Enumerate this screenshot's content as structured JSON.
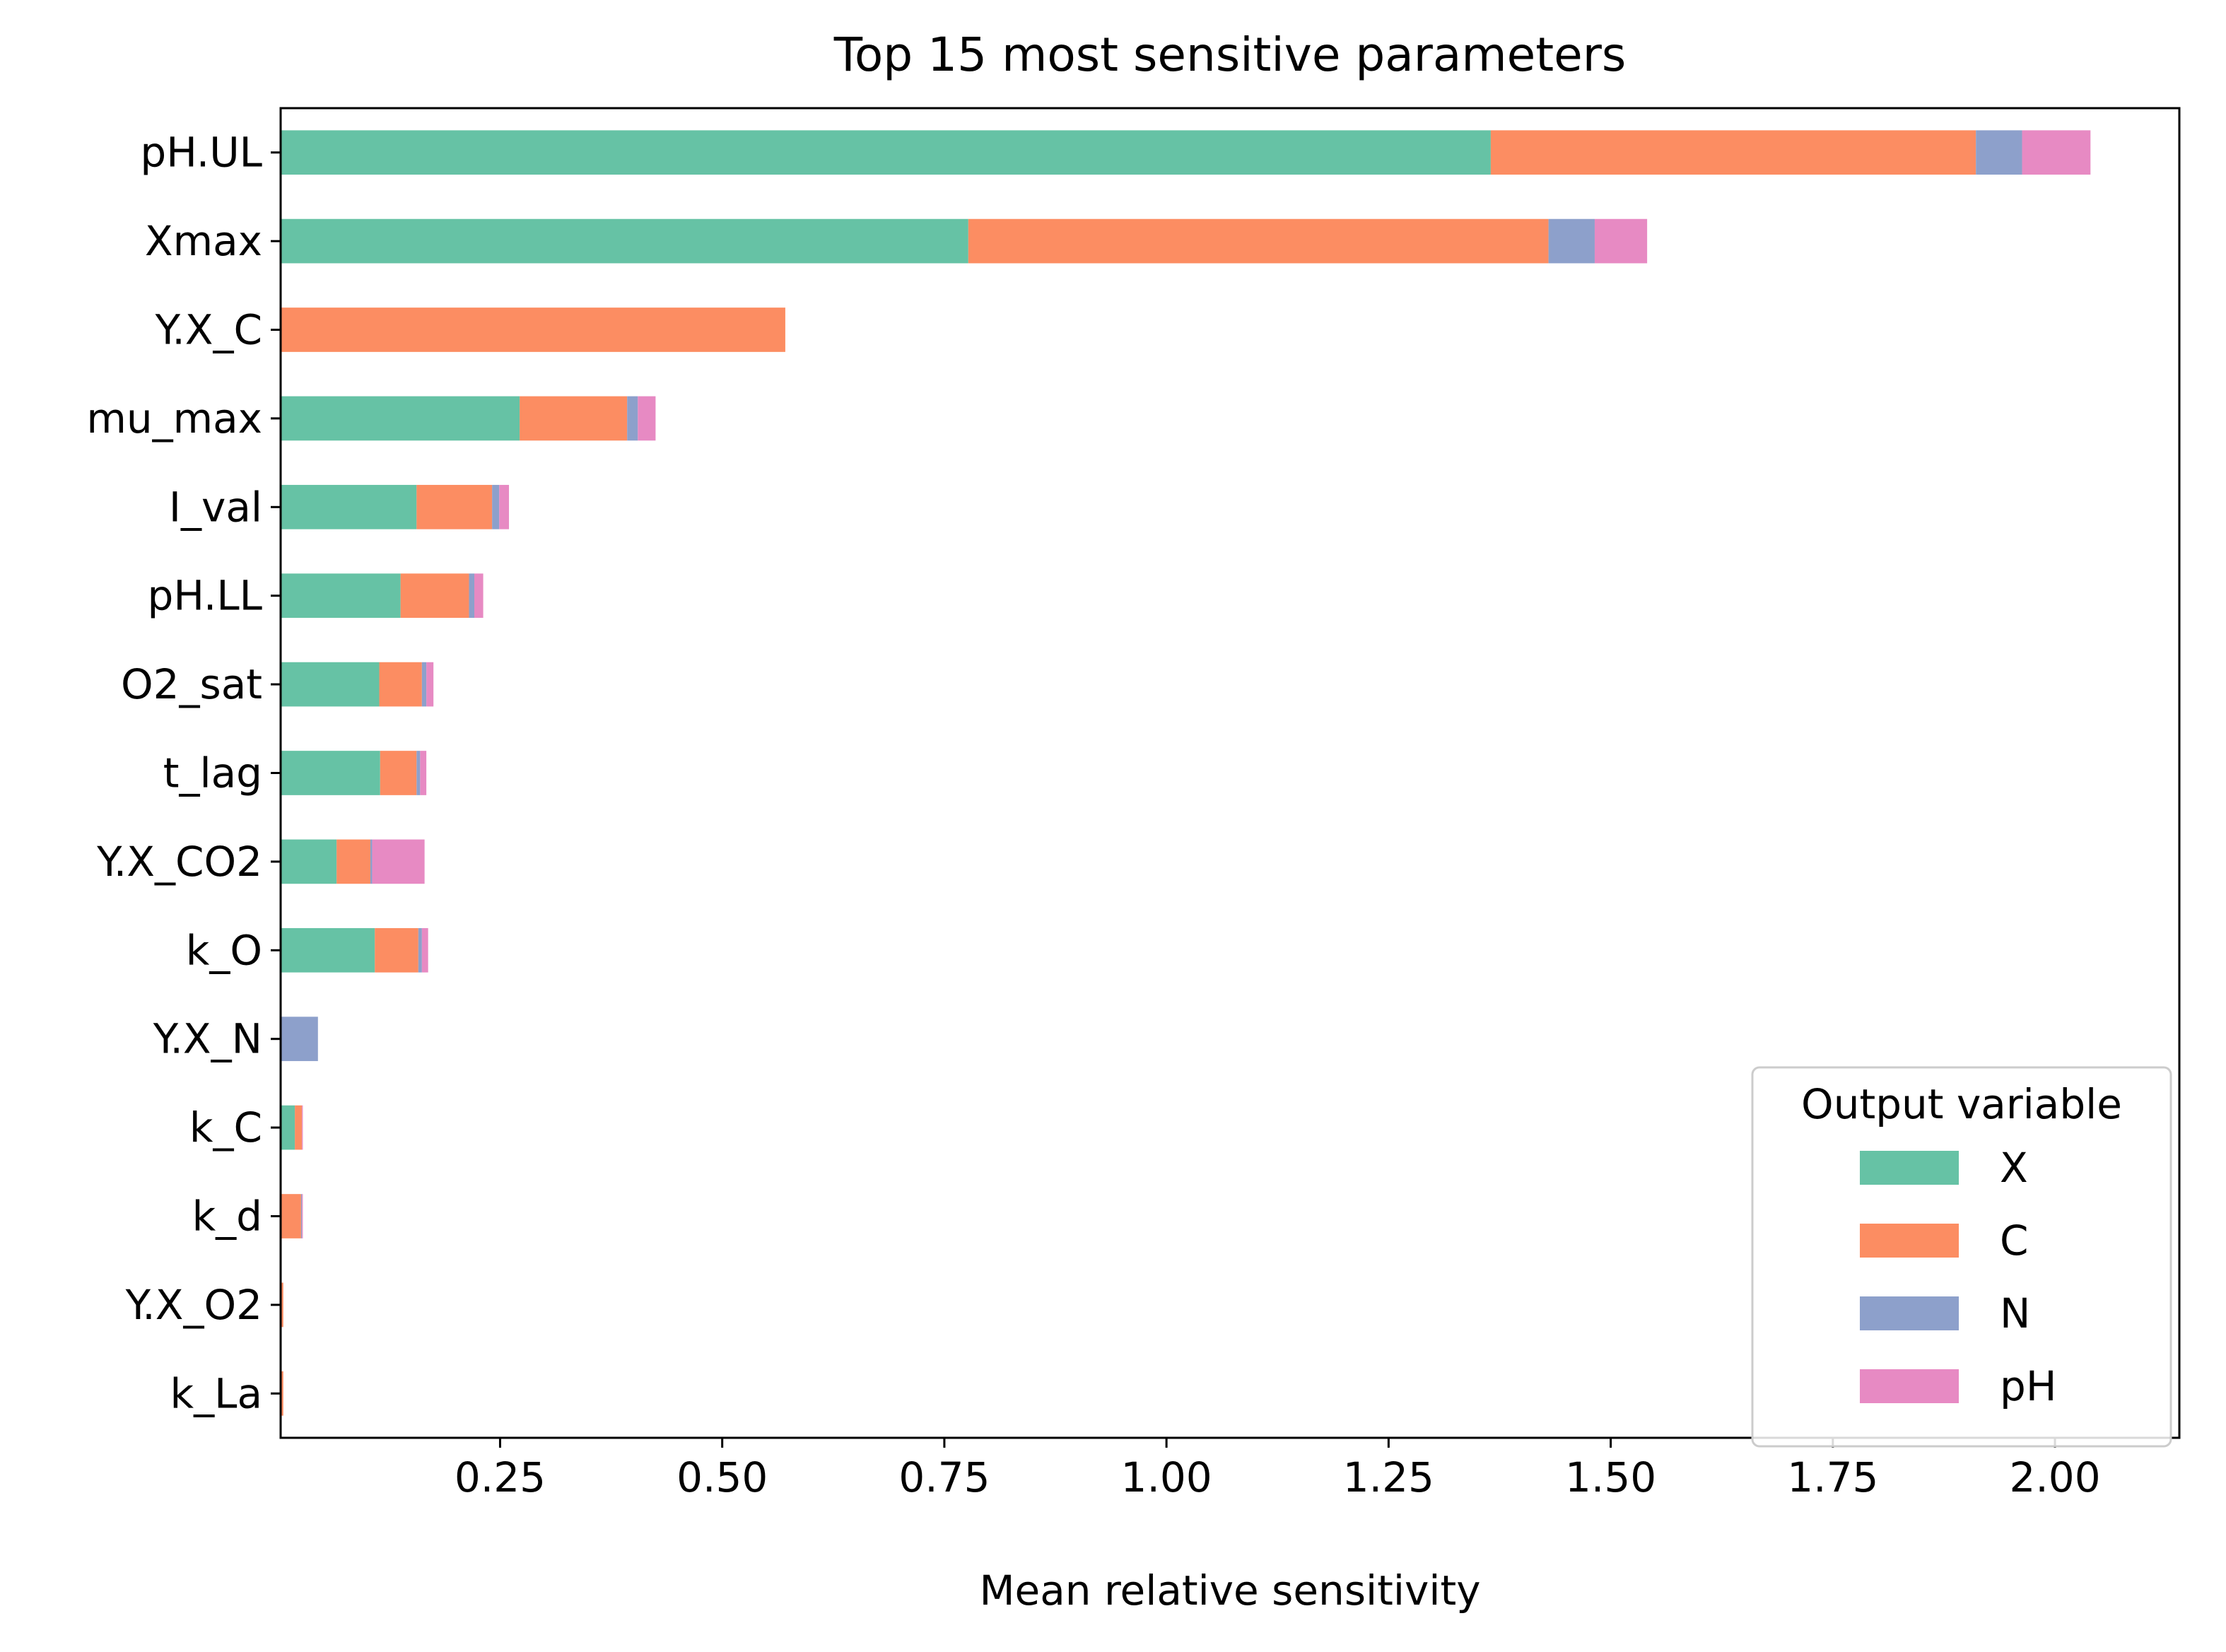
{
  "chart_data": {
    "type": "bar",
    "orientation": "horizontal",
    "stacked": true,
    "title": "Top 15 most sensitive parameters",
    "xlabel": "Mean relative sensitivity",
    "ylabel": "",
    "xlim": [
      0.003,
      2.14
    ],
    "xticks": [
      "0.25",
      "0.50",
      "0.75",
      "1.00",
      "1.25",
      "1.50",
      "1.75",
      "2.00"
    ],
    "categories": [
      "pH.UL",
      "Xmax",
      "Y.X_C",
      "mu_max",
      "I_val",
      "pH.LL",
      "O2_sat",
      "t_lag",
      "Y.X_CO2",
      "k_O",
      "Y.X_N",
      "k_C",
      "k_d",
      "Y.X_O2",
      "k_La"
    ],
    "series": [
      {
        "name": "X",
        "color": "#66c2a5",
        "values": [
          1.365,
          0.777,
          0.0,
          0.272,
          0.156,
          0.138,
          0.114,
          0.115,
          0.066,
          0.109,
          0.0,
          0.019,
          0.004,
          0.0,
          0.0
        ]
      },
      {
        "name": "C",
        "color": "#fc8d62",
        "values": [
          0.546,
          0.653,
          0.571,
          0.121,
          0.085,
          0.077,
          0.048,
          0.041,
          0.038,
          0.049,
          0.0,
          0.008,
          0.022,
          0.006,
          0.006
        ]
      },
      {
        "name": "N",
        "color": "#8da0cb",
        "values": [
          0.052,
          0.052,
          0.0,
          0.012,
          0.008,
          0.006,
          0.005,
          0.004,
          0.002,
          0.004,
          0.045,
          0.0,
          0.001,
          0.0,
          0.0
        ]
      },
      {
        "name": "pH",
        "color": "#e78ac3",
        "values": [
          0.077,
          0.059,
          0.0,
          0.02,
          0.011,
          0.01,
          0.008,
          0.007,
          0.059,
          0.007,
          0.0,
          0.001,
          0.001,
          0.0,
          0.0
        ]
      }
    ],
    "legend": {
      "title": "Output variable",
      "position": "lower-right"
    },
    "grid": false
  }
}
